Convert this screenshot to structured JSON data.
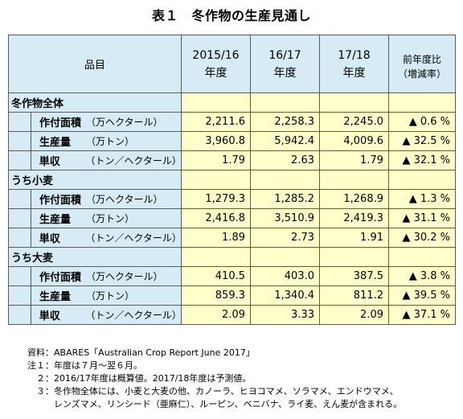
{
  "title": "表１　冬作物の生産見通し",
  "header": {
    "item_col": "品目",
    "years": [
      {
        "line1": "2015/16",
        "line2": "年度"
      },
      {
        "line1": "16/17",
        "line2": "年度"
      },
      {
        "line1": "17/18",
        "line2": "年度"
      }
    ],
    "change_line1": "前年度比",
    "change_line2": "（増減率）"
  },
  "sections": [
    {
      "name": "冬作物全体",
      "rows": [
        {
          "item": "作付面積",
          "unit": "（万ヘクタール）",
          "v1": "2,211.6",
          "v2": "2,258.3",
          "v3": "2,245.0",
          "chg": "▲ 0.6 %"
        },
        {
          "item": "生産量",
          "unit": "（万トン）",
          "v1": "3,960.8",
          "v2": "5,942.4",
          "v3": "4,009.6",
          "chg": "▲ 32.5 %"
        },
        {
          "item": "単収",
          "unit": "（トン／ヘクタール）",
          "v1": "1.79",
          "v2": "2.63",
          "v3": "1.79",
          "chg": "▲ 32.1 %"
        }
      ]
    },
    {
      "name": "うち小麦",
      "rows": [
        {
          "item": "作付面積",
          "unit": "（万ヘクタール）",
          "v1": "1,279.3",
          "v2": "1,285.2",
          "v3": "1,268.9",
          "chg": "▲ 1.3 %"
        },
        {
          "item": "生産量",
          "unit": "（万トン）",
          "v1": "2,416.8",
          "v2": "3,510.9",
          "v3": "2,419.3",
          "chg": "▲ 31.1 %"
        },
        {
          "item": "単収",
          "unit": "（トン／ヘクタール）",
          "v1": "1.89",
          "v2": "2.73",
          "v3": "1.91",
          "chg": "▲ 30.2 %"
        }
      ]
    },
    {
      "name": "うち大麦",
      "rows": [
        {
          "item": "作付面積",
          "unit": "（万ヘクタール）",
          "v1": "410.5",
          "v2": "403.0",
          "v3": "387.5",
          "chg": "▲ 3.8 %"
        },
        {
          "item": "生産量",
          "unit": "（万トン）",
          "v1": "859.3",
          "v2": "1,340.4",
          "v3": "811.2",
          "chg": "▲ 39.5 %"
        },
        {
          "item": "単収",
          "unit": "（トン／ヘクタール）",
          "v1": "2.09",
          "v2": "3.33",
          "v3": "2.09",
          "chg": "▲ 37.1 %"
        }
      ]
    }
  ],
  "notes": {
    "source": "資料：ABARES「Australian Crop Report June 2017」",
    "note1": "注１：年度は７月～翌６月。",
    "note2": "　２：2016/17年度は概算値。2017/18年度は予測値。",
    "note3a": "　３：冬作物全体には、小麦と大麦の他、カノーラ、ヒヨコマメ、ソラマメ、エンドウマメ、",
    "note3b": "　　　レンズマメ、リンシード（亜麻仁）、ルーピン、ベニバナ、ライ麦、えん麦が含まれる。"
  },
  "colors": {
    "header_bg": "#d6ebf5",
    "value_bg": "#ffffcc",
    "border": "#5a5a5a"
  }
}
